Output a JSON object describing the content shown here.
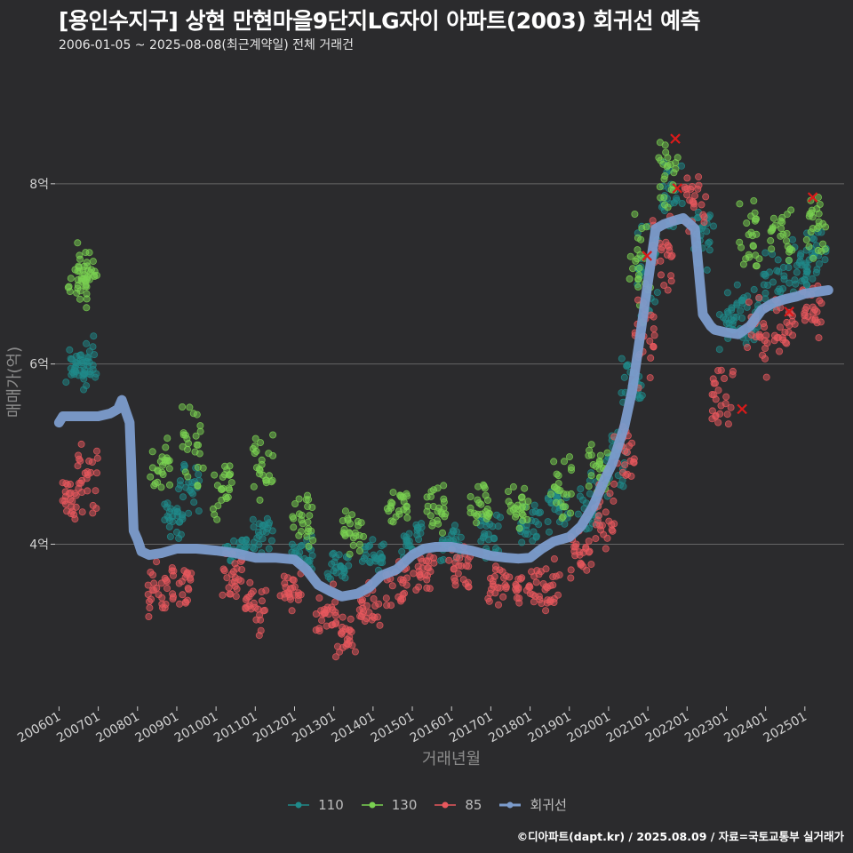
{
  "title": "[용인수지구] 상현 만현마을9단지LG자이 아파트(2003) 회귀선 예측",
  "subtitle": "2006-01-05 ~ 2025-08-08(최근계약일) 전체 거래건",
  "caption": "©디아파트(dapt.kr) / 2025.08.09 / 자료=국토교통부 실거래가",
  "chart_data": {
    "type": "scatter",
    "xlabel": "거래년월",
    "ylabel": "매매가(억)",
    "x_ticks": [
      "200601",
      "200701",
      "200801",
      "200901",
      "201001",
      "201101",
      "201201",
      "201301",
      "201401",
      "201501",
      "201601",
      "201701",
      "201801",
      "201901",
      "202001",
      "202101",
      "202201",
      "202301",
      "202401",
      "202501"
    ],
    "y_ticks": [
      {
        "value": 4,
        "label": "4억"
      },
      {
        "value": 6,
        "label": "6억"
      },
      {
        "value": 8,
        "label": "8억"
      }
    ],
    "xlim": [
      2005.9,
      2026.0
    ],
    "ylim": [
      2.2,
      9.3
    ],
    "grid": "horizontal",
    "legend_position": "bottom",
    "colors": {
      "110": "#1f8a8a",
      "130": "#7ad151",
      "85": "#e8585d",
      "regression": "#7c9ccc"
    },
    "series": [
      {
        "name": "110",
        "color": "#1f8a8a",
        "clusters": [
          [
            2006.45,
            5.95,
            0.25
          ],
          [
            2006.7,
            6.0,
            0.28
          ],
          [
            2008.9,
            4.3,
            0.2
          ],
          [
            2009.3,
            4.6,
            0.3
          ],
          [
            2010.5,
            3.95,
            0.12
          ],
          [
            2011.2,
            4.15,
            0.2
          ],
          [
            2012.2,
            3.9,
            0.15
          ],
          [
            2013.1,
            3.75,
            0.15
          ],
          [
            2014.0,
            3.85,
            0.15
          ],
          [
            2015.0,
            4.05,
            0.18
          ],
          [
            2016.0,
            4.05,
            0.18
          ],
          [
            2017.0,
            4.1,
            0.2
          ],
          [
            2018.0,
            4.2,
            0.2
          ],
          [
            2018.7,
            4.4,
            0.25
          ],
          [
            2019.5,
            4.5,
            0.3
          ],
          [
            2020.2,
            4.9,
            0.3
          ],
          [
            2020.6,
            5.8,
            0.35
          ],
          [
            2021.0,
            7.1,
            0.45
          ],
          [
            2021.6,
            7.8,
            0.4
          ],
          [
            2022.4,
            7.4,
            0.3
          ],
          [
            2023.1,
            6.5,
            0.3
          ],
          [
            2023.6,
            6.6,
            0.3
          ],
          [
            2024.2,
            6.9,
            0.3
          ],
          [
            2024.8,
            7.1,
            0.25
          ],
          [
            2025.3,
            7.2,
            0.25
          ]
        ]
      },
      {
        "name": "130",
        "color": "#7ad151",
        "clusters": [
          [
            2006.5,
            6.9,
            0.22
          ],
          [
            2006.7,
            7.05,
            0.25
          ],
          [
            2008.6,
            4.9,
            0.25
          ],
          [
            2009.4,
            5.1,
            0.4
          ],
          [
            2010.2,
            4.6,
            0.25
          ],
          [
            2011.2,
            4.8,
            0.35
          ],
          [
            2012.2,
            4.3,
            0.25
          ],
          [
            2013.5,
            4.1,
            0.2
          ],
          [
            2014.6,
            4.4,
            0.2
          ],
          [
            2015.6,
            4.4,
            0.25
          ],
          [
            2016.7,
            4.4,
            0.2
          ],
          [
            2017.7,
            4.4,
            0.2
          ],
          [
            2018.8,
            4.6,
            0.3
          ],
          [
            2019.7,
            4.8,
            0.25
          ],
          [
            2020.8,
            7.2,
            0.6
          ],
          [
            2021.5,
            8.1,
            0.35
          ],
          [
            2023.6,
            7.4,
            0.35
          ],
          [
            2024.4,
            7.5,
            0.3
          ],
          [
            2025.3,
            7.5,
            0.3
          ]
        ]
      },
      {
        "name": "85",
        "color": "#e8585d",
        "clusters": [
          [
            2006.35,
            4.5,
            0.2
          ],
          [
            2006.75,
            4.7,
            0.35
          ],
          [
            2008.5,
            3.5,
            0.25
          ],
          [
            2009.1,
            3.55,
            0.2
          ],
          [
            2010.4,
            3.65,
            0.2
          ],
          [
            2011.0,
            3.3,
            0.25
          ],
          [
            2011.9,
            3.45,
            0.2
          ],
          [
            2012.8,
            3.25,
            0.25
          ],
          [
            2013.3,
            3.0,
            0.25
          ],
          [
            2013.9,
            3.35,
            0.2
          ],
          [
            2014.6,
            3.55,
            0.2
          ],
          [
            2015.3,
            3.7,
            0.2
          ],
          [
            2016.2,
            3.75,
            0.2
          ],
          [
            2017.2,
            3.55,
            0.2
          ],
          [
            2017.9,
            3.5,
            0.2
          ],
          [
            2018.5,
            3.55,
            0.25
          ],
          [
            2019.3,
            3.9,
            0.25
          ],
          [
            2019.9,
            4.3,
            0.3
          ],
          [
            2020.4,
            5.0,
            0.3
          ],
          [
            2020.9,
            6.3,
            0.5
          ],
          [
            2021.4,
            7.3,
            0.45
          ],
          [
            2022.2,
            7.8,
            0.3
          ],
          [
            2022.9,
            5.6,
            0.3
          ],
          [
            2023.8,
            6.3,
            0.35
          ],
          [
            2024.5,
            6.4,
            0.3
          ],
          [
            2025.2,
            6.6,
            0.3
          ]
        ]
      }
    ],
    "regression": {
      "name": "회귀선",
      "x": [
        2006.0,
        2006.1,
        2006.3,
        2006.6,
        2007.0,
        2007.3,
        2007.5,
        2007.6,
        2007.8,
        2007.9,
        2008.0,
        2008.1,
        2008.3,
        2008.6,
        2009.0,
        2009.5,
        2010.0,
        2010.5,
        2011.0,
        2011.5,
        2012.0,
        2012.3,
        2012.6,
        2012.9,
        2013.2,
        2013.6,
        2013.9,
        2014.2,
        2014.6,
        2015.0,
        2015.3,
        2015.6,
        2016.0,
        2016.5,
        2017.0,
        2017.4,
        2017.7,
        2018.0,
        2018.3,
        2018.6,
        2019.0,
        2019.3,
        2019.6,
        2019.9,
        2020.1,
        2020.4,
        2020.6,
        2020.8,
        2021.0,
        2021.2,
        2021.4,
        2021.6,
        2021.9,
        2022.2,
        2022.4,
        2022.6,
        2022.7,
        2023.0,
        2023.3,
        2023.6,
        2023.9,
        2024.2,
        2024.5,
        2024.8,
        2025.0,
        2025.3,
        2025.6
      ],
      "y": [
        5.35,
        5.42,
        5.42,
        5.42,
        5.42,
        5.45,
        5.5,
        5.6,
        5.35,
        4.15,
        4.05,
        3.92,
        3.88,
        3.9,
        3.95,
        3.95,
        3.93,
        3.9,
        3.85,
        3.85,
        3.83,
        3.72,
        3.55,
        3.48,
        3.42,
        3.45,
        3.52,
        3.65,
        3.72,
        3.88,
        3.95,
        3.97,
        3.97,
        3.93,
        3.87,
        3.85,
        3.84,
        3.85,
        3.95,
        4.03,
        4.08,
        4.2,
        4.42,
        4.72,
        4.9,
        5.3,
        5.7,
        6.3,
        6.9,
        7.5,
        7.55,
        7.58,
        7.62,
        7.5,
        6.55,
        6.42,
        6.38,
        6.35,
        6.33,
        6.42,
        6.6,
        6.68,
        6.72,
        6.75,
        6.78,
        6.8,
        6.82
      ]
    },
    "highlights": [
      {
        "x": 2020.98,
        "y": 7.2
      },
      {
        "x": 2021.7,
        "y": 8.5
      },
      {
        "x": 2021.75,
        "y": 7.95
      },
      {
        "x": 2023.4,
        "y": 5.5
      },
      {
        "x": 2024.6,
        "y": 6.58
      },
      {
        "x": 2025.2,
        "y": 7.85
      }
    ]
  }
}
